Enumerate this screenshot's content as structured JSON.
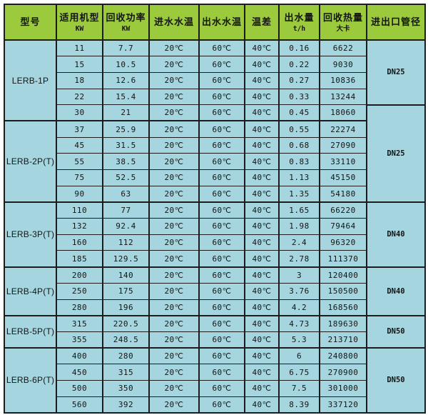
{
  "chart_data": {
    "type": "table",
    "columns": [
      "型号",
      "适用机型 KW",
      "回收功率 KW",
      "进水水温",
      "出水水温",
      "温差",
      "出水量 t/h",
      "回收热量 大卡",
      "进出口管径"
    ],
    "rows": [
      [
        "LERB-1P",
        "11",
        "7.7",
        "20℃",
        "60℃",
        "40℃",
        "0.16",
        "6622",
        "DN25"
      ],
      [
        "LERB-1P",
        "15",
        "10.5",
        "20℃",
        "60℃",
        "40℃",
        "0.22",
        "9030",
        "DN25"
      ],
      [
        "LERB-1P",
        "18",
        "12.6",
        "20℃",
        "60℃",
        "40℃",
        "0.27",
        "10836",
        "DN25"
      ],
      [
        "LERB-1P",
        "22",
        "15.4",
        "20℃",
        "60℃",
        "40℃",
        "0.33",
        "13244",
        "DN25"
      ],
      [
        "LERB-1P",
        "30",
        "21",
        "20℃",
        "60℃",
        "40℃",
        "0.45",
        "18060",
        "DN25"
      ],
      [
        "LERB-2P(T)",
        "37",
        "25.9",
        "20℃",
        "60℃",
        "40℃",
        "0.55",
        "22274",
        "DN25"
      ],
      [
        "LERB-2P(T)",
        "45",
        "31.5",
        "20℃",
        "60℃",
        "40℃",
        "0.68",
        "27090",
        "DN25"
      ],
      [
        "LERB-2P(T)",
        "55",
        "38.5",
        "20℃",
        "60℃",
        "40℃",
        "0.83",
        "33110",
        "DN25"
      ],
      [
        "LERB-2P(T)",
        "75",
        "52.5",
        "20℃",
        "60℃",
        "40℃",
        "1.13",
        "45150",
        "DN25"
      ],
      [
        "LERB-2P(T)",
        "90",
        "63",
        "20℃",
        "60℃",
        "40℃",
        "1.35",
        "54180",
        "DN25"
      ],
      [
        "LERB-3P(T)",
        "110",
        "77",
        "20℃",
        "60℃",
        "40℃",
        "1.65",
        "66220",
        "DN40"
      ],
      [
        "LERB-3P(T)",
        "132",
        "92.4",
        "20℃",
        "60℃",
        "40℃",
        "1.98",
        "79464",
        "DN40"
      ],
      [
        "LERB-3P(T)",
        "160",
        "112",
        "20℃",
        "60℃",
        "40℃",
        "2.4",
        "96320",
        "DN40"
      ],
      [
        "LERB-3P(T)",
        "185",
        "129.5",
        "20℃",
        "60℃",
        "40℃",
        "2.78",
        "111370",
        "DN40"
      ],
      [
        "LERB-4P(T)",
        "200",
        "140",
        "20℃",
        "60℃",
        "40℃",
        "3",
        "120400",
        "DN40"
      ],
      [
        "LERB-4P(T)",
        "250",
        "175",
        "20℃",
        "60℃",
        "40℃",
        "3.76",
        "150500",
        "DN40"
      ],
      [
        "LERB-4P(T)",
        "280",
        "196",
        "20℃",
        "60℃",
        "40℃",
        "4.2",
        "168560",
        "DN40"
      ],
      [
        "LERB-5P(T)",
        "315",
        "220.5",
        "20℃",
        "60℃",
        "40℃",
        "4.73",
        "189630",
        "DN50"
      ],
      [
        "LERB-5P(T)",
        "355",
        "248.5",
        "20℃",
        "60℃",
        "40℃",
        "5.3",
        "213710",
        "DN50"
      ],
      [
        "LERB-6P(T)",
        "400",
        "280",
        "20℃",
        "60℃",
        "40℃",
        "6",
        "240800",
        "DN50"
      ],
      [
        "LERB-6P(T)",
        "450",
        "315",
        "20℃",
        "60℃",
        "40℃",
        "6.75",
        "270900",
        "DN50"
      ],
      [
        "LERB-6P(T)",
        "500",
        "350",
        "20℃",
        "60℃",
        "40℃",
        "7.5",
        "301000",
        "DN50"
      ],
      [
        "LERB-6P(T)",
        "560",
        "392",
        "20℃",
        "60℃",
        "40℃",
        "8.39",
        "337120",
        "DN50"
      ]
    ]
  },
  "table": {
    "header": [
      {
        "line1": "型号",
        "line2": ""
      },
      {
        "line1": "适用机型",
        "line2": "KW"
      },
      {
        "line1": "回收功率",
        "line2": "KW"
      },
      {
        "line1": "进水水温",
        "line2": ""
      },
      {
        "line1": "出水水温",
        "line2": ""
      },
      {
        "line1": "温差",
        "line2": ""
      },
      {
        "line1": "出水量",
        "line2": "t/h"
      },
      {
        "line1": "回收热量",
        "line2": "大卡"
      },
      {
        "line1": "进出口管径",
        "line2": ""
      }
    ],
    "model_spans": [
      {
        "label": "LERB-1P",
        "rows": 5
      },
      {
        "label": "LERB-2P(T)",
        "rows": 5
      },
      {
        "label": "LERB-3P(T)",
        "rows": 4
      },
      {
        "label": "LERB-4P(T)",
        "rows": 3
      },
      {
        "label": "LERB-5P(T)",
        "rows": 2
      },
      {
        "label": "LERB-6P(T)",
        "rows": 4
      }
    ],
    "pipe_spans": [
      {
        "label": "DN25",
        "rows": 4
      },
      {
        "label": "DN25",
        "rows": 6
      },
      {
        "label": "DN40",
        "rows": 4
      },
      {
        "label": "DN40",
        "rows": 3
      },
      {
        "label": "DN50",
        "rows": 2
      },
      {
        "label": "DN50",
        "rows": 4
      }
    ]
  },
  "colors": {
    "header_bg": "#9BCB3C",
    "cell_bg": "#A5D6E0",
    "border": "#1c1c1c",
    "text": "#141414",
    "page_bg": "#ffffff"
  }
}
